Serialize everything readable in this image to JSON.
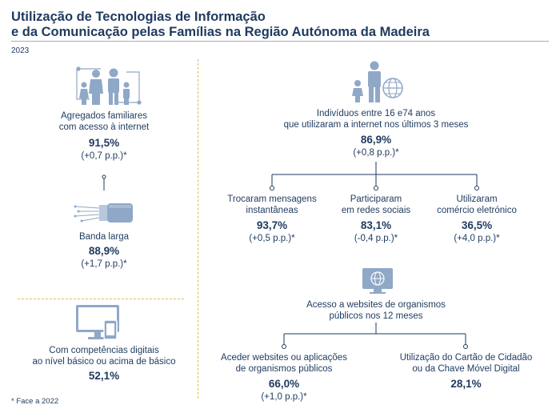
{
  "title_line1": "Utilização de Tecnologias de Informação",
  "title_line2": "e da Comunicação pelas Famílias na Região Autónoma da Madeira",
  "year": "2023",
  "footnote": "* Face a 2022",
  "households": {
    "internet": {
      "label1": "Agregados familiares",
      "label2": "com acesso à internet",
      "value": "91,5%",
      "change": "(+0,7 p.p.)*",
      "icon": "family-network-icon"
    },
    "broadband": {
      "label1": "Banda larga",
      "value": "88,9%",
      "change": "(+1,7 p.p.)*",
      "icon": "fiber-cable-icon"
    },
    "digital_skills": {
      "label1": "Com competências digitais",
      "label2": "ao nível básico ou acima de básico",
      "value": "52,1%",
      "icon": "monitor-phone-icon"
    }
  },
  "individuals": {
    "main": {
      "label1": "Indivíduos entre 16 e74 anos",
      "label2": "que utilizaram a internet nos últimos 3 meses",
      "value": "86,9%",
      "change": "(+0,8 p.p.)*",
      "icon": "people-globe-icon"
    },
    "messages": {
      "label1": "Trocaram mensagens",
      "label2": "instantâneas",
      "value": "93,7%",
      "change": "(+0,5 p.p.)*"
    },
    "social": {
      "label1": "Participaram",
      "label2": "em redes sociais",
      "value": "83,1%",
      "change": "(-0,4 p.p.)*"
    },
    "ecommerce": {
      "label1": "Utilizaram",
      "label2": "comércio eletrónico",
      "value": "36,5%",
      "change": "(+4,0 p.p.)*"
    },
    "public_websites": {
      "label1": "Acesso a websites de organismos",
      "label2": "públicos nos 12 meses",
      "icon": "browser-globe-icon"
    },
    "access_websites": {
      "label1": "Aceder websites ou aplicações",
      "label2": "de organismos públicos",
      "value": "66,0%",
      "change": "(+1,0 p.p.)*"
    },
    "citizen_card": {
      "label1": "Utilização do Cartão de Cidadão",
      "label2": "ou da Chave Móvel Digital",
      "value": "28,1%"
    }
  },
  "colors": {
    "navy": "#1e3a5f",
    "icon": "#8fa8c8",
    "accent": "#e6b84a",
    "connector": "#1e3a5f"
  }
}
